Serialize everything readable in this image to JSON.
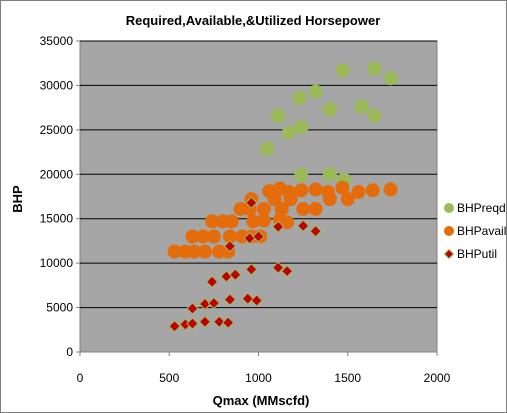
{
  "chart_data": {
    "type": "scatter",
    "title": "Required,Available,&Utilized Horsepower",
    "xlabel": "Qmax (MMscfd)",
    "ylabel": "BHP",
    "xlim": [
      0,
      2000
    ],
    "ylim": [
      0,
      35000
    ],
    "xticks": [
      "0",
      "500",
      "1000",
      "1500",
      "2000"
    ],
    "yticks": [
      "0",
      "5000",
      "10000",
      "15000",
      "20000",
      "25000",
      "30000",
      "35000"
    ],
    "grid": "horizontal",
    "legend_position": "right",
    "plot_background": "#a6a6a6",
    "series": [
      {
        "name": "BHPreqd",
        "marker": "circle",
        "color": "#9bbb59",
        "points": [
          [
            1050,
            22900
          ],
          [
            1110,
            26600
          ],
          [
            1170,
            24700
          ],
          [
            1240,
            25300
          ],
          [
            1230,
            28600
          ],
          [
            1320,
            29300
          ],
          [
            1400,
            27300
          ],
          [
            1470,
            31700
          ],
          [
            1580,
            27600
          ],
          [
            1650,
            31900
          ],
          [
            1650,
            26600
          ],
          [
            1740,
            30800
          ],
          [
            1240,
            19900
          ],
          [
            1400,
            20000
          ],
          [
            1480,
            19400
          ]
        ]
      },
      {
        "name": "BHPavail",
        "marker": "circle",
        "color": "#e46c0a",
        "points": [
          [
            530,
            11300
          ],
          [
            590,
            11300
          ],
          [
            640,
            11300
          ],
          [
            700,
            11300
          ],
          [
            780,
            11300
          ],
          [
            830,
            11300
          ],
          [
            630,
            13000
          ],
          [
            690,
            13000
          ],
          [
            750,
            13000
          ],
          [
            840,
            13000
          ],
          [
            910,
            13000
          ],
          [
            960,
            13000
          ],
          [
            1010,
            13000
          ],
          [
            740,
            14700
          ],
          [
            800,
            14700
          ],
          [
            850,
            14700
          ],
          [
            970,
            14700
          ],
          [
            900,
            16100
          ],
          [
            950,
            16100
          ],
          [
            1030,
            16100
          ],
          [
            1130,
            16100
          ],
          [
            1250,
            16100
          ],
          [
            1320,
            16100
          ],
          [
            960,
            17200
          ],
          [
            1090,
            17200
          ],
          [
            1180,
            17200
          ],
          [
            1400,
            17200
          ],
          [
            1500,
            17200
          ],
          [
            1060,
            18100
          ],
          [
            1120,
            18400
          ],
          [
            1170,
            18000
          ],
          [
            1240,
            18200
          ],
          [
            1320,
            18300
          ],
          [
            1390,
            18000
          ],
          [
            1470,
            18500
          ],
          [
            1560,
            18000
          ],
          [
            1640,
            18200
          ],
          [
            1740,
            18300
          ],
          [
            1030,
            14800
          ],
          [
            1120,
            14900
          ],
          [
            1160,
            14600
          ]
        ]
      },
      {
        "name": "BHPutil",
        "marker": "diamond",
        "color": "#c00000",
        "points": [
          [
            530,
            2900
          ],
          [
            590,
            3100
          ],
          [
            630,
            3200
          ],
          [
            700,
            3400
          ],
          [
            780,
            3400
          ],
          [
            830,
            3300
          ],
          [
            630,
            4900
          ],
          [
            700,
            5400
          ],
          [
            750,
            5500
          ],
          [
            840,
            5900
          ],
          [
            940,
            6000
          ],
          [
            990,
            5800
          ],
          [
            740,
            7900
          ],
          [
            820,
            8500
          ],
          [
            870,
            8700
          ],
          [
            960,
            9300
          ],
          [
            1110,
            9500
          ],
          [
            1160,
            9100
          ],
          [
            840,
            11900
          ],
          [
            950,
            12800
          ],
          [
            1000,
            13000
          ],
          [
            1110,
            14100
          ],
          [
            1250,
            14200
          ],
          [
            1320,
            13600
          ],
          [
            960,
            16800
          ]
        ]
      }
    ]
  }
}
